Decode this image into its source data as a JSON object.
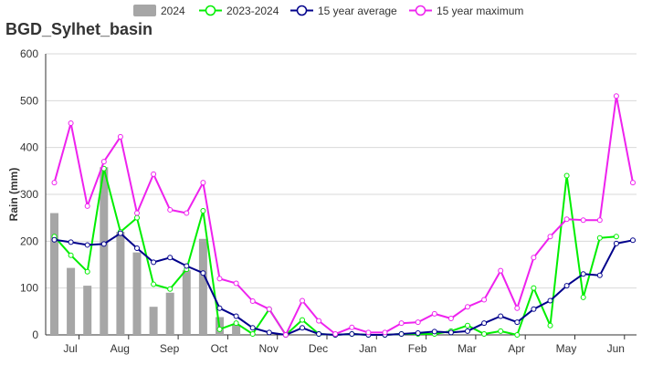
{
  "chart_data": {
    "type": "bar+line",
    "title": "BGD_Sylhet_basin",
    "ylabel": "Rain (mm)",
    "xlabel": "",
    "ylim": [
      0,
      600
    ],
    "yticks": [
      "0",
      "100",
      "200",
      "300",
      "400",
      "500",
      "600"
    ],
    "month_labels": [
      "Jul",
      "Aug",
      "Sep",
      "Oct",
      "Nov",
      "Dec",
      "Jan",
      "Feb",
      "Mar",
      "Apr",
      "May",
      "Jun"
    ],
    "grid": true,
    "legend_position": "top",
    "series": [
      {
        "name": "2024",
        "kind": "bar",
        "color": "#a6a6a6",
        "values": [
          260,
          143,
          105,
          358,
          220,
          176,
          60,
          90,
          138,
          205,
          38,
          22
        ]
      },
      {
        "name": "2023-2024",
        "kind": "line",
        "color": "#00ee00",
        "values": [
          210,
          170,
          135,
          355,
          220,
          250,
          108,
          98,
          140,
          265,
          12,
          25,
          2,
          55,
          0,
          32,
          2,
          0,
          2,
          0,
          0,
          2,
          2,
          2,
          8,
          20,
          2,
          8,
          0,
          100,
          20,
          340,
          80,
          207,
          210
        ]
      },
      {
        "name": "15 year average",
        "kind": "line",
        "color": "#00008b",
        "values": [
          203,
          198,
          192,
          194,
          217,
          185,
          155,
          165,
          147,
          132,
          57,
          40,
          15,
          5,
          0,
          15,
          2,
          0,
          2,
          0,
          0,
          2,
          4,
          7,
          5,
          8,
          25,
          40,
          27,
          55,
          73,
          105,
          130,
          127,
          195,
          202
        ]
      },
      {
        "name": "15 year maximum",
        "kind": "line",
        "color": "#ee22ee",
        "values": [
          325,
          452,
          275,
          370,
          423,
          260,
          343,
          267,
          260,
          325,
          120,
          110,
          72,
          55,
          0,
          73,
          30,
          2,
          16,
          5,
          5,
          25,
          27,
          45,
          35,
          60,
          75,
          137,
          57,
          165,
          210,
          247,
          245,
          245,
          510,
          325
        ]
      }
    ]
  }
}
